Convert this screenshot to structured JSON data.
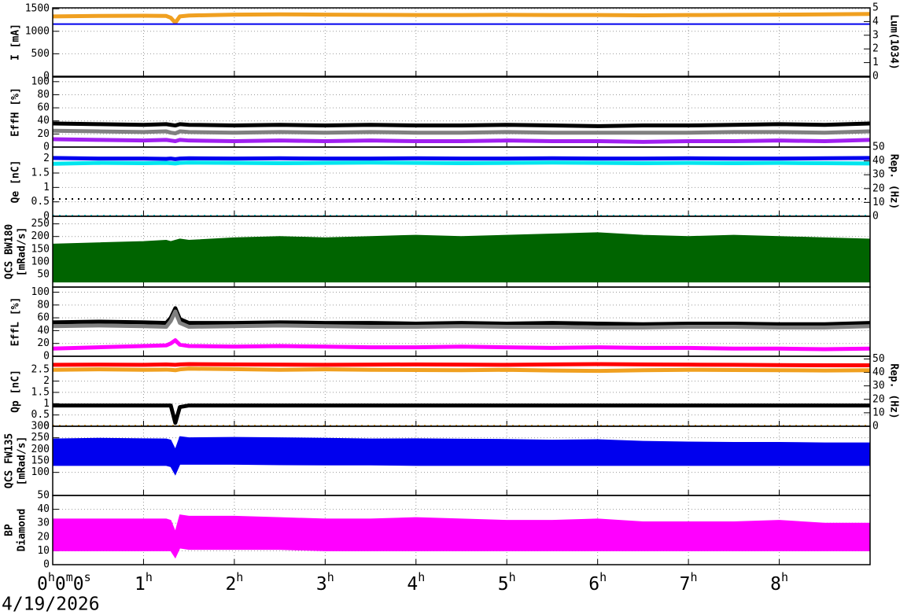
{
  "x_axis": {
    "xlim": [
      0,
      9
    ],
    "xticks": [
      {
        "value": 0,
        "label": "0h0m0s"
      },
      {
        "value": 1,
        "label": "1h"
      },
      {
        "value": 2,
        "label": "2h"
      },
      {
        "value": 3,
        "label": "3h"
      },
      {
        "value": 4,
        "label": "4h"
      },
      {
        "value": 5,
        "label": "5h"
      },
      {
        "value": 6,
        "label": "6h"
      },
      {
        "value": 7,
        "label": "7h"
      },
      {
        "value": 8,
        "label": "8h"
      }
    ],
    "date": "4/19/2026"
  },
  "chart_data": [
    {
      "type": "line",
      "ylabel": [
        "I [mA]"
      ],
      "ylim": [
        0,
        1520
      ],
      "yticks": [
        0,
        500,
        1000,
        1500
      ],
      "y2label": [
        "Lum(1034)"
      ],
      "y2lim": [
        0,
        5
      ],
      "y2ticks": [
        0,
        1,
        2,
        3,
        4,
        5
      ],
      "x": [
        0,
        0.5,
        1,
        1.25,
        1.3,
        1.35,
        1.4,
        1.5,
        2,
        2.5,
        3,
        3.5,
        4,
        4.5,
        5,
        5.5,
        6,
        6.5,
        7,
        7.5,
        8,
        8.5,
        9
      ],
      "series": [
        {
          "color": "#f0a020",
          "values": [
            1330,
            1340,
            1345,
            1340,
            1300,
            1190,
            1330,
            1350,
            1370,
            1375,
            1370,
            1365,
            1360,
            1360,
            1365,
            1360,
            1360,
            1355,
            1360,
            1365,
            1370,
            1375,
            1385
          ]
        },
        {
          "color": "#0000ee",
          "values": [
            1160,
            1160,
            1160,
            1160,
            1160,
            1160,
            1160,
            1160,
            1160,
            1160,
            1160,
            1160,
            1160,
            1160,
            1160,
            1160,
            1160,
            1160,
            1160,
            1160,
            1160,
            1160,
            1160
          ]
        }
      ]
    },
    {
      "type": "line",
      "ylabel": [
        "EffH [%]"
      ],
      "ylim": [
        0,
        107
      ],
      "yticks": [
        0,
        20,
        40,
        60,
        80,
        100
      ],
      "x": [
        0,
        0.5,
        1,
        1.25,
        1.3,
        1.35,
        1.4,
        1.5,
        2,
        2.5,
        3,
        3.5,
        4,
        4.5,
        5,
        5.5,
        6,
        6.5,
        7,
        7.5,
        8,
        8.5,
        9
      ],
      "series": [
        {
          "color": "#000000",
          "values": [
            36,
            35,
            34,
            35,
            34,
            33,
            35,
            34,
            33,
            34,
            33,
            34,
            33,
            33,
            34,
            33,
            32,
            33,
            33,
            34,
            35,
            34,
            36
          ]
        },
        {
          "color": "#808080",
          "values": [
            25,
            24,
            23,
            24,
            22,
            21,
            24,
            23,
            22,
            23,
            22,
            23,
            22,
            22,
            23,
            22,
            22,
            22,
            22,
            23,
            23,
            22,
            24
          ]
        },
        {
          "color": "#a020f0",
          "values": [
            12,
            11,
            10,
            11,
            10,
            9,
            11,
            10,
            9,
            10,
            9,
            10,
            9,
            9,
            10,
            9,
            9,
            8,
            9,
            9,
            10,
            9,
            11
          ]
        }
      ]
    },
    {
      "type": "line",
      "ylabel": [
        "Qe [nC]"
      ],
      "ylim": [
        0,
        2.4
      ],
      "yticks": [
        0,
        0.5,
        1,
        1.5,
        2
      ],
      "y2label": [
        "Rep. (Hz)"
      ],
      "y2lim": [
        0,
        50
      ],
      "y2ticks": [
        0,
        10,
        20,
        30,
        40,
        50
      ],
      "x": [
        0,
        0.5,
        1,
        1.25,
        1.3,
        1.35,
        1.4,
        1.5,
        2,
        2.5,
        3,
        3.5,
        4,
        4.5,
        5,
        5.5,
        6,
        6.5,
        7,
        7.5,
        8,
        8.5,
        9
      ],
      "series": [
        {
          "color": "#00e5ee",
          "values": [
            1.82,
            1.85,
            1.84,
            1.85,
            1.84,
            1.83,
            1.85,
            1.86,
            1.85,
            1.84,
            1.85,
            1.86,
            1.85,
            1.84,
            1.85,
            1.86,
            1.85,
            1.84,
            1.85,
            1.84,
            1.85,
            1.84,
            1.83
          ]
        },
        {
          "color": "#0000ee",
          "values": [
            2.02,
            2.0,
            2.0,
            1.99,
            2.0,
            1.98,
            2.0,
            2.01,
            2.0,
            2.01,
            2.0,
            2.0,
            2.01,
            2.0,
            2.0,
            2.01,
            2.0,
            2.0,
            2.01,
            2.0,
            2.0,
            2.01,
            2.02
          ]
        },
        {
          "color": "#000000",
          "axis": "y2",
          "values": [
            12.5,
            12.5,
            12.5,
            12.5,
            12.5,
            12.5,
            12.5,
            12.5,
            12.5,
            12.5,
            12.5,
            12.5,
            12.5,
            12.5,
            12.5,
            12.5,
            12.5,
            12.5,
            12.5,
            12.5,
            12.5,
            12.5,
            12.5
          ]
        },
        {
          "color": "#00e5ee",
          "axis": "y2",
          "values": [
            0.5,
            0.5,
            0.5,
            0.5,
            0.5,
            0.5,
            0.5,
            0.5,
            0.5,
            0.5,
            0.5,
            0.5,
            0.5,
            0.5,
            0.5,
            0.5,
            0.5,
            0.5,
            0.5,
            0.5,
            0.5,
            0.5,
            0.5
          ]
        }
      ]
    },
    {
      "type": "band",
      "ylabel": [
        "QCS BW180",
        "[mRad/s]"
      ],
      "ylim": [
        0,
        280
      ],
      "yticks": [
        50,
        100,
        150,
        200,
        250
      ],
      "x": [
        0,
        0.5,
        1,
        1.25,
        1.3,
        1.35,
        1.4,
        1.5,
        2,
        2.5,
        3,
        3.5,
        4,
        4.5,
        5,
        5.5,
        6,
        6.5,
        7,
        7.5,
        8,
        8.5,
        9
      ],
      "series": [
        {
          "color": "#006400",
          "values": [
            170,
            175,
            180,
            185,
            180,
            185,
            190,
            185,
            195,
            200,
            195,
            200,
            205,
            200,
            205,
            210,
            215,
            205,
            200,
            205,
            200,
            195,
            190
          ],
          "low": [
            20,
            20,
            20,
            20,
            20,
            20,
            20,
            20,
            20,
            20,
            20,
            20,
            20,
            20,
            20,
            20,
            20,
            20,
            20,
            20,
            20,
            20,
            20
          ]
        }
      ]
    },
    {
      "type": "line",
      "ylabel": [
        "EffL [%]"
      ],
      "ylim": [
        0,
        108
      ],
      "yticks": [
        0,
        20,
        40,
        60,
        80,
        100
      ],
      "x": [
        0,
        0.5,
        1,
        1.25,
        1.3,
        1.35,
        1.4,
        1.5,
        2,
        2.5,
        3,
        3.5,
        4,
        4.5,
        5,
        5.5,
        6,
        6.5,
        7,
        7.5,
        8,
        8.5,
        9
      ],
      "series": [
        {
          "color": "#000000",
          "values": [
            53,
            54,
            53,
            52,
            60,
            75,
            58,
            52,
            52,
            53,
            52,
            52,
            51,
            52,
            51,
            52,
            51,
            50,
            51,
            51,
            50,
            50,
            52
          ]
        },
        {
          "color": "#808080",
          "values": [
            47,
            48,
            47,
            46,
            55,
            70,
            52,
            46,
            47,
            48,
            47,
            46,
            46,
            47,
            46,
            46,
            45,
            45,
            46,
            46,
            45,
            45,
            47
          ]
        },
        {
          "color": "#ff00ff",
          "values": [
            12,
            14,
            16,
            17,
            20,
            25,
            18,
            16,
            15,
            16,
            15,
            14,
            14,
            15,
            14,
            13,
            14,
            13,
            13,
            12,
            12,
            11,
            12
          ]
        }
      ]
    },
    {
      "type": "line",
      "ylabel": [
        "Qp [nC]"
      ],
      "ylim": [
        0,
        3.1
      ],
      "yticks": [
        0,
        0.5,
        1,
        1.5,
        2,
        2.5
      ],
      "y2label": [
        "Rep. (Hz)"
      ],
      "y2lim": [
        0,
        52
      ],
      "y2ticks": [
        0,
        10,
        20,
        30,
        40,
        50
      ],
      "x": [
        0,
        0.5,
        1,
        1.25,
        1.3,
        1.35,
        1.4,
        1.5,
        2,
        2.5,
        3,
        3.5,
        4,
        4.5,
        5,
        5.5,
        6,
        6.5,
        7,
        7.5,
        8,
        8.5,
        9
      ],
      "series": [
        {
          "color": "#f0a020",
          "values": [
            2.5,
            2.52,
            2.5,
            2.51,
            2.5,
            2.48,
            2.52,
            2.55,
            2.53,
            2.5,
            2.52,
            2.5,
            2.49,
            2.48,
            2.5,
            2.47,
            2.45,
            2.48,
            2.5,
            2.49,
            2.48,
            2.47,
            2.48
          ]
        },
        {
          "color": "#ff0000",
          "values": [
            2.72,
            2.73,
            2.72,
            2.74,
            2.73,
            2.72,
            2.74,
            2.75,
            2.74,
            2.73,
            2.72,
            2.73,
            2.74,
            2.73,
            2.72,
            2.74,
            2.75,
            2.74,
            2.73,
            2.72,
            2.71,
            2.7,
            2.7
          ]
        },
        {
          "color": "#000000",
          "values": [
            0.92,
            0.92,
            0.92,
            0.92,
            0.92,
            0.15,
            0.85,
            0.92,
            0.92,
            0.92,
            0.92,
            0.92,
            0.92,
            0.92,
            0.92,
            0.92,
            0.92,
            0.92,
            0.92,
            0.92,
            0.92,
            0.92,
            0.92
          ]
        },
        {
          "color": "#f0a020",
          "axis": "y2",
          "values": [
            0.5,
            0.5,
            0.5,
            0.5,
            0.5,
            0.5,
            0.5,
            0.5,
            0.5,
            0.5,
            0.5,
            0.5,
            0.5,
            0.5,
            0.5,
            0.5,
            0.5,
            0.5,
            0.5,
            0.5,
            0.5,
            0.5,
            0.5
          ]
        }
      ]
    },
    {
      "type": "band",
      "ylabel": [
        "QCS FW135",
        "[mRad/s]"
      ],
      "ylim": [
        0,
        300
      ],
      "yticks": [
        100,
        150,
        200,
        250,
        300
      ],
      "x": [
        0,
        0.5,
        1,
        1.25,
        1.3,
        1.35,
        1.4,
        1.5,
        2,
        2.5,
        3,
        3.5,
        4,
        4.5,
        5,
        5.5,
        6,
        6.5,
        7,
        7.5,
        8,
        8.5,
        9
      ],
      "series": [
        {
          "color": "#0000ee",
          "values": [
            245,
            248,
            246,
            245,
            240,
            200,
            255,
            250,
            252,
            250,
            248,
            245,
            246,
            244,
            243,
            240,
            242,
            235,
            232,
            230,
            230,
            228,
            228
          ],
          "low": [
            130,
            130,
            130,
            130,
            125,
            90,
            135,
            135,
            135,
            133,
            132,
            132,
            130,
            130,
            130,
            130,
            130,
            130,
            130,
            130,
            130,
            130,
            130
          ]
        }
      ]
    },
    {
      "type": "band",
      "ylabel": [
        "BP",
        "Diamond"
      ],
      "ylim": [
        0,
        50
      ],
      "yticks": [
        0,
        10,
        20,
        30,
        40,
        50
      ],
      "x": [
        0,
        0.5,
        1,
        1.25,
        1.3,
        1.35,
        1.4,
        1.5,
        2,
        2.5,
        3,
        3.5,
        4,
        4.5,
        5,
        5.5,
        6,
        6.5,
        7,
        7.5,
        8,
        8.5,
        9
      ],
      "series": [
        {
          "color": "#ff00ff",
          "values": [
            33,
            33,
            33,
            33,
            32,
            24,
            36,
            35,
            35,
            34,
            33,
            33,
            34,
            33,
            32,
            32,
            33,
            31,
            31,
            31,
            32,
            30,
            30
          ],
          "low": [
            10,
            10,
            10,
            10,
            10,
            5,
            12,
            11,
            11,
            11,
            10,
            10,
            10,
            10,
            10,
            10,
            10,
            10,
            10,
            10,
            10,
            10,
            10
          ]
        }
      ]
    }
  ]
}
